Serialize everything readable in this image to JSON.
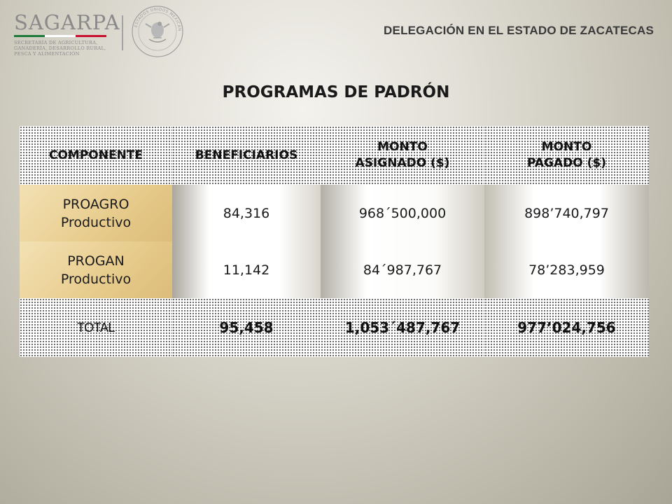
{
  "header": {
    "logo_text": "SAGARPA",
    "logo_subtitle": [
      "SECRETARÍA DE AGRICULTURA,",
      "GANADERÍA, DESARROLLO RURAL,",
      "PESCA Y ALIMENTACIÓN"
    ],
    "seal_text": "ESTADOS UNIDOS MEXICANOS",
    "delegation": "DELEGACIÓN EN EL ESTADO DE ZACATECAS",
    "colors": {
      "green": "#1e7a3a",
      "white": "#ffffff",
      "red": "#c8102e"
    }
  },
  "title": "PROGRAMAS DE PADRÓN",
  "table": {
    "headers": {
      "componente": "COMPONENTE",
      "beneficiarios": "BENEFICIARIOS",
      "asignado": [
        "MONTO",
        "ASIGNADO ($)"
      ],
      "pagado": [
        "MONTO",
        "PAGADO ($)"
      ]
    },
    "rows": [
      {
        "componente": [
          "PROAGRO",
          "Productivo"
        ],
        "beneficiarios": "84,316",
        "asignado": "968´500,000",
        "pagado": "898’740,797"
      },
      {
        "componente": [
          "PROGAN",
          "Productivo"
        ],
        "beneficiarios": "11,142",
        "asignado": "84´987,767",
        "pagado": "78’283,959"
      }
    ],
    "total": {
      "label": "TOTAL",
      "beneficiarios": "95,458",
      "asignado": "1,053´487,767",
      "pagado": "977’024,756"
    }
  }
}
